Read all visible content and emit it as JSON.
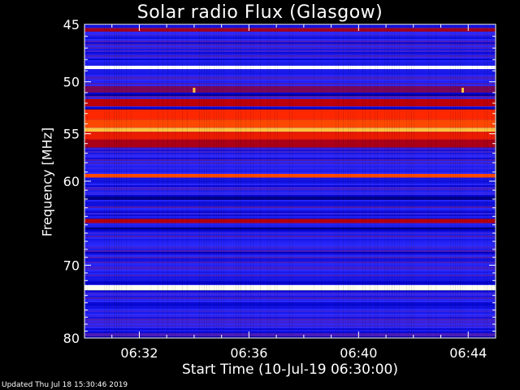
{
  "chart_data": {
    "type": "heatmap",
    "title": "Solar radio Flux (Glasgow)",
    "xlabel": "Start Time (10-Jul-19 06:30:00)",
    "ylabel": "Frequency [MHz]",
    "x_range_minutes": [
      0,
      15
    ],
    "x_ticks": [
      {
        "minute": 2,
        "label": "06:32"
      },
      {
        "minute": 6,
        "label": "06:36"
      },
      {
        "minute": 10,
        "label": "06:40"
      },
      {
        "minute": 14,
        "label": "06:44"
      }
    ],
    "ylim": [
      45,
      80
    ],
    "y_axis": "log",
    "y_ticks": [
      45,
      50,
      55,
      60,
      70,
      80
    ],
    "colormap": [
      "#000033",
      "#0000c8",
      "#2a2aff",
      "#8b0033",
      "#c80000",
      "#ff2a00",
      "#ff9900",
      "#ffff99",
      "#ffffff"
    ],
    "bands": [
      {
        "freq_min": 45.3,
        "freq_max": 45.6,
        "intensity": 0.42
      },
      {
        "freq_min": 48.55,
        "freq_max": 48.85,
        "intensity": 1.0
      },
      {
        "freq_min": 50.4,
        "freq_max": 51.0,
        "intensity": 0.35
      },
      {
        "freq_min": 51.6,
        "freq_max": 52.3,
        "intensity": 0.48
      },
      {
        "freq_min": 52.6,
        "freq_max": 53.6,
        "intensity": 0.62
      },
      {
        "freq_min": 53.6,
        "freq_max": 54.4,
        "intensity": 0.66
      },
      {
        "freq_min": 54.4,
        "freq_max": 54.8,
        "intensity": 0.8
      },
      {
        "freq_min": 54.8,
        "freq_max": 55.6,
        "intensity": 0.58
      },
      {
        "freq_min": 55.6,
        "freq_max": 56.4,
        "intensity": 0.44
      },
      {
        "freq_min": 59.2,
        "freq_max": 59.6,
        "intensity": 0.66
      },
      {
        "freq_min": 64.3,
        "freq_max": 64.8,
        "intensity": 0.46
      },
      {
        "freq_min": 72.6,
        "freq_max": 73.3,
        "intensity": 0.98
      }
    ],
    "bursts": [
      {
        "minute": 4.0,
        "freq": 51.0,
        "intensity": 0.8
      },
      {
        "minute": 13.8,
        "freq": 51.0,
        "intensity": 0.8
      }
    ]
  },
  "footer": "Updated Thu Jul 18 15:30:46 2019"
}
